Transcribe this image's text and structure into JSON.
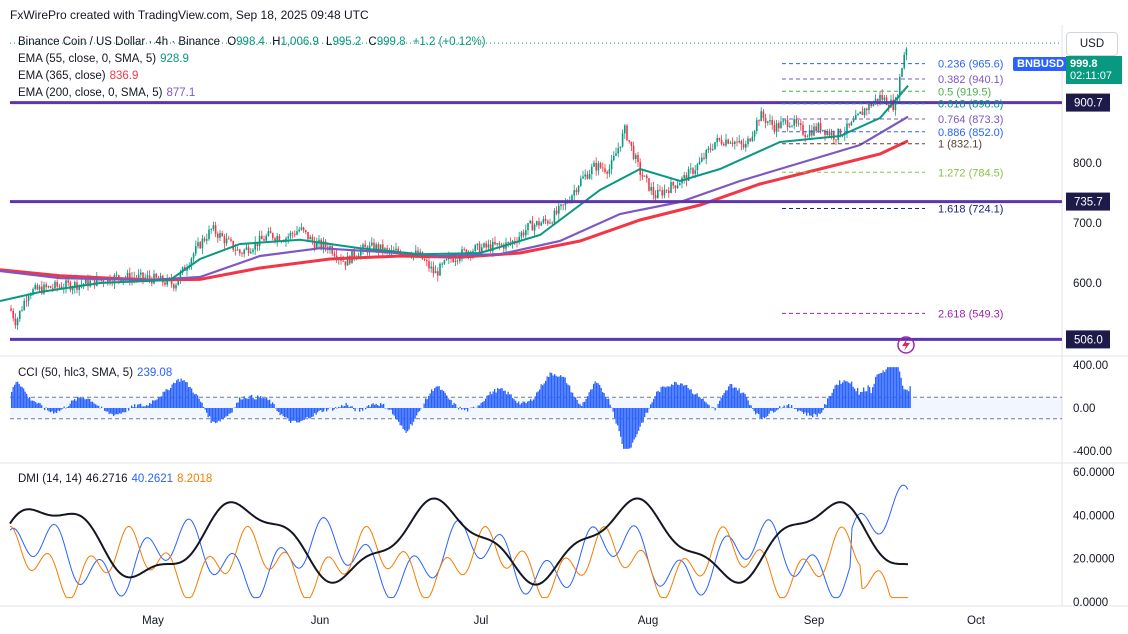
{
  "header": {
    "credit": "FxWirePro created with TradingView.com, Sep 18, 2025 09:48 UTC"
  },
  "currency_button": "USD",
  "symbol_badge": "BNBUSD",
  "price_badge": {
    "price": "999.8",
    "countdown": "02:11:07"
  },
  "legend": {
    "title": "Binance Coin / US Dollar · 4h · Binance",
    "ohlc": {
      "o_label": "O",
      "o": "998.4",
      "h_label": "H",
      "h": "1,006.9",
      "l_label": "L",
      "l": "995.2",
      "c_label": "C",
      "c": "999.8",
      "change": "+1.2 (+0.12%)"
    },
    "ema55": {
      "label": "EMA (55, close, 0, SMA, 5)",
      "value": "928.9",
      "color": "#089981"
    },
    "ema365": {
      "label": "EMA (365, close)",
      "value": "836.9",
      "color": "#f23645"
    },
    "ema200": {
      "label": "EMA (200, close, 0, SMA, 5)",
      "value": "877.1",
      "color": "#7e57c2"
    },
    "cci": {
      "label": "CCI (50, hlc3, SMA, 5)",
      "value": "239.08"
    },
    "dmi": {
      "label": "DMI (14, 14)",
      "adx": "46.2716",
      "plus": "40.2621",
      "minus": "8.2018"
    }
  },
  "chart_data": {
    "type": "candlestick",
    "title": "Binance Coin / US Dollar · 4h · Binance",
    "x_ticks": [
      "May",
      "Jun",
      "Jul",
      "Aug",
      "Sep",
      "Oct"
    ],
    "price_axis": {
      "ticks": [
        600,
        700,
        800
      ],
      "range": [
        480,
        1030
      ]
    },
    "horizontal_levels": [
      {
        "value": 900.7,
        "label": "900.7"
      },
      {
        "value": 735.7,
        "label": "735.7"
      },
      {
        "value": 506.0,
        "label": "506.0"
      }
    ],
    "fibonacci": [
      {
        "ratio": "0.236",
        "price": "965.6"
      },
      {
        "ratio": "0.382",
        "price": "940.1"
      },
      {
        "ratio": "0.5",
        "price": "919.5"
      },
      {
        "ratio": "0.618",
        "price": "898.8"
      },
      {
        "ratio": "0.764",
        "price": "873.3"
      },
      {
        "ratio": "0.886",
        "price": "852.0"
      },
      {
        "ratio": "1",
        "price": "832.1"
      },
      {
        "ratio": "1.272",
        "price": "784.5"
      },
      {
        "ratio": "1.618",
        "price": "724.1"
      },
      {
        "ratio": "2.618",
        "price": "549.3"
      }
    ],
    "price_path": [
      [
        0,
        590
      ],
      [
        8,
        565
      ],
      [
        16,
        535
      ],
      [
        28,
        585
      ],
      [
        42,
        590
      ],
      [
        60,
        595
      ],
      [
        80,
        598
      ],
      [
        100,
        605
      ],
      [
        120,
        610
      ],
      [
        150,
        608
      ],
      [
        175,
        598
      ],
      [
        190,
        640
      ],
      [
        200,
        665
      ],
      [
        212,
        690
      ],
      [
        225,
        672
      ],
      [
        240,
        650
      ],
      [
        255,
        665
      ],
      [
        270,
        680
      ],
      [
        285,
        675
      ],
      [
        300,
        690
      ],
      [
        315,
        665
      ],
      [
        330,
        660
      ],
      [
        345,
        635
      ],
      [
        360,
        655
      ],
      [
        375,
        660
      ],
      [
        390,
        650
      ],
      [
        405,
        655
      ],
      [
        420,
        645
      ],
      [
        435,
        615
      ],
      [
        450,
        640
      ],
      [
        470,
        655
      ],
      [
        490,
        660
      ],
      [
        510,
        665
      ],
      [
        530,
        695
      ],
      [
        550,
        705
      ],
      [
        565,
        730
      ],
      [
        580,
        770
      ],
      [
        595,
        795
      ],
      [
        610,
        790
      ],
      [
        625,
        855
      ],
      [
        640,
        785
      ],
      [
        655,
        745
      ],
      [
        670,
        760
      ],
      [
        685,
        775
      ],
      [
        700,
        800
      ],
      [
        715,
        835
      ],
      [
        730,
        840
      ],
      [
        745,
        825
      ],
      [
        760,
        880
      ],
      [
        775,
        860
      ],
      [
        790,
        870
      ],
      [
        805,
        850
      ],
      [
        820,
        860
      ],
      [
        835,
        845
      ],
      [
        850,
        860
      ],
      [
        865,
        890
      ],
      [
        880,
        910
      ],
      [
        895,
        895
      ],
      [
        905,
        990
      ],
      [
        908,
        1000
      ]
    ],
    "ema55": {
      "label": "EMA (55, close, 0, SMA, 5)",
      "value": 928.9,
      "path": [
        [
          0,
          570
        ],
        [
          40,
          585
        ],
        [
          100,
          600
        ],
        [
          170,
          605
        ],
        [
          200,
          640
        ],
        [
          240,
          665
        ],
        [
          300,
          672
        ],
        [
          360,
          658
        ],
        [
          420,
          648
        ],
        [
          480,
          650
        ],
        [
          540,
          680
        ],
        [
          600,
          755
        ],
        [
          640,
          790
        ],
        [
          680,
          770
        ],
        [
          720,
          790
        ],
        [
          780,
          835
        ],
        [
          840,
          845
        ],
        [
          880,
          875
        ],
        [
          908,
          928.9
        ]
      ]
    },
    "ema200": {
      "label": "EMA (200, close, 0, SMA, 5)",
      "value": 877.1,
      "path": [
        [
          0,
          620
        ],
        [
          60,
          608
        ],
        [
          150,
          605
        ],
        [
          200,
          610
        ],
        [
          260,
          645
        ],
        [
          320,
          658
        ],
        [
          380,
          652
        ],
        [
          440,
          645
        ],
        [
          500,
          648
        ],
        [
          560,
          670
        ],
        [
          620,
          715
        ],
        [
          680,
          735
        ],
        [
          740,
          770
        ],
        [
          800,
          800
        ],
        [
          860,
          830
        ],
        [
          908,
          877.1
        ]
      ]
    },
    "ema365": {
      "label": "EMA (365, close)",
      "value": 836.9,
      "path": [
        [
          0,
          622
        ],
        [
          60,
          612
        ],
        [
          150,
          605
        ],
        [
          200,
          606
        ],
        [
          260,
          625
        ],
        [
          330,
          640
        ],
        [
          400,
          645
        ],
        [
          460,
          643
        ],
        [
          520,
          650
        ],
        [
          580,
          670
        ],
        [
          640,
          705
        ],
        [
          700,
          730
        ],
        [
          760,
          765
        ],
        [
          820,
          790
        ],
        [
          880,
          815
        ],
        [
          908,
          836.9
        ]
      ]
    },
    "cci": {
      "label": "CCI (50, hlc3, SMA, 5)",
      "value": 239.08,
      "ticks": [
        400,
        0,
        -400
      ],
      "bands": [
        100,
        -100
      ]
    },
    "dmi": {
      "label": "DMI (14, 14)",
      "adx": 46.2716,
      "di_plus": 40.2621,
      "di_minus": 8.2018,
      "ticks": [
        60,
        40,
        20,
        0
      ]
    }
  }
}
